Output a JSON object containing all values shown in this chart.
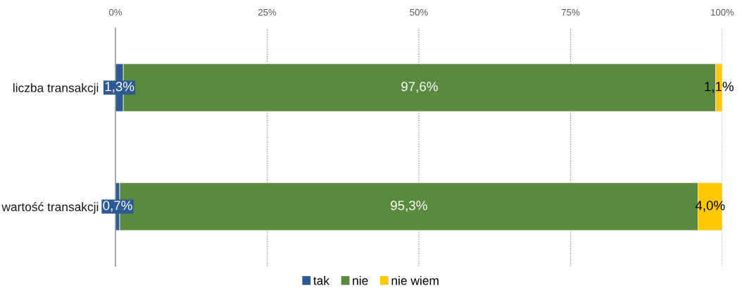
{
  "chart_data": {
    "type": "bar",
    "orientation": "horizontal",
    "stacked": true,
    "categories": [
      "liczba transakcji",
      "wartość transakcji"
    ],
    "series": [
      {
        "name": "tak",
        "color": "#2e5a94",
        "values": [
          1.3,
          0.7
        ],
        "value_labels": [
          "1,3%",
          "0,7%"
        ]
      },
      {
        "name": "nie",
        "color": "#5a8a3e",
        "values": [
          97.6,
          95.3
        ],
        "value_labels": [
          "97,6%",
          "95,3%"
        ]
      },
      {
        "name": "nie wiem",
        "color": "#ffc800",
        "values": [
          1.1,
          4.0
        ],
        "value_labels": [
          "1,1%",
          "4,0%"
        ]
      }
    ],
    "xlim": [
      0,
      100
    ],
    "xticks": [
      {
        "value": 0,
        "label": "0%"
      },
      {
        "value": 25,
        "label": "25%"
      },
      {
        "value": 50,
        "label": "50%"
      },
      {
        "value": 75,
        "label": "75%"
      },
      {
        "value": 100,
        "label": "100%"
      }
    ],
    "grid": "x",
    "legend": "bottom"
  }
}
